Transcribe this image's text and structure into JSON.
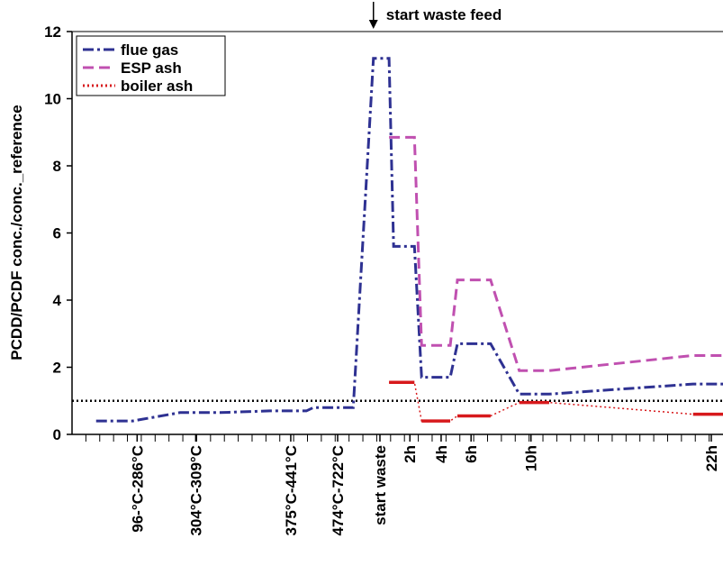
{
  "chart_data": {
    "type": "line",
    "y_label": "PCDD/PCDF conc./conc._reference",
    "annotation": {
      "text": "start waste feed",
      "x": 46.3
    },
    "reference_line": 1,
    "xlim": [
      0,
      100
    ],
    "ylim": [
      0,
      12
    ],
    "yticks": [
      0,
      2,
      4,
      6,
      8,
      10,
      12
    ],
    "xticks": [
      {
        "value": 10,
        "label": "96-°C-286°C"
      },
      {
        "value": 19,
        "label": "304°C-309°C"
      },
      {
        "value": 33.6,
        "label": "375°C-441°C"
      },
      {
        "value": 40.8,
        "label": "474°C-722°C"
      },
      {
        "value": 47.3,
        "label": "start waste"
      },
      {
        "value": 51.9,
        "label": "2h"
      },
      {
        "value": 56.7,
        "label": "4h"
      },
      {
        "value": 61.3,
        "label": "6h"
      },
      {
        "value": 70.5,
        "label": "10h"
      },
      {
        "value": 98.2,
        "label": "22h"
      }
    ],
    "series": [
      {
        "name": "flue gas",
        "color": "#2e3192",
        "style": "dashdot",
        "x": [
          3.7,
          9.3,
          16.6,
          22.8,
          30.4,
          36,
          37.1,
          43.2,
          46.3,
          48.7,
          49.4,
          52.6,
          53.7,
          58.1,
          59.2,
          64.3,
          68.7,
          73.3,
          95.4,
          100
        ],
        "values": [
          0.4,
          0.4,
          0.65,
          0.65,
          0.7,
          0.7,
          0.8,
          0.8,
          11.2,
          11.2,
          5.6,
          5.6,
          1.7,
          1.7,
          2.7,
          2.7,
          1.2,
          1.2,
          1.5,
          1.5
        ]
      },
      {
        "name": "ESP ash",
        "color": "#c050b0",
        "style": "dash",
        "x": [
          48.7,
          52.6,
          53.7,
          58.1,
          59.2,
          64.3,
          68.7,
          73.3,
          95.4,
          100
        ],
        "values": [
          8.85,
          8.85,
          2.65,
          2.65,
          4.6,
          4.6,
          1.9,
          1.9,
          2.35,
          2.35
        ]
      },
      {
        "name": "boiler ash",
        "color": "#d7191c",
        "style": "dot",
        "x": [
          48.7,
          52.6,
          53.7,
          58.1,
          59.2,
          64.3,
          68.7,
          73.3,
          95.4,
          100
        ],
        "values": [
          1.55,
          1.55,
          0.4,
          0.4,
          0.55,
          0.55,
          0.95,
          0.95,
          0.6,
          0.6
        ]
      }
    ]
  }
}
